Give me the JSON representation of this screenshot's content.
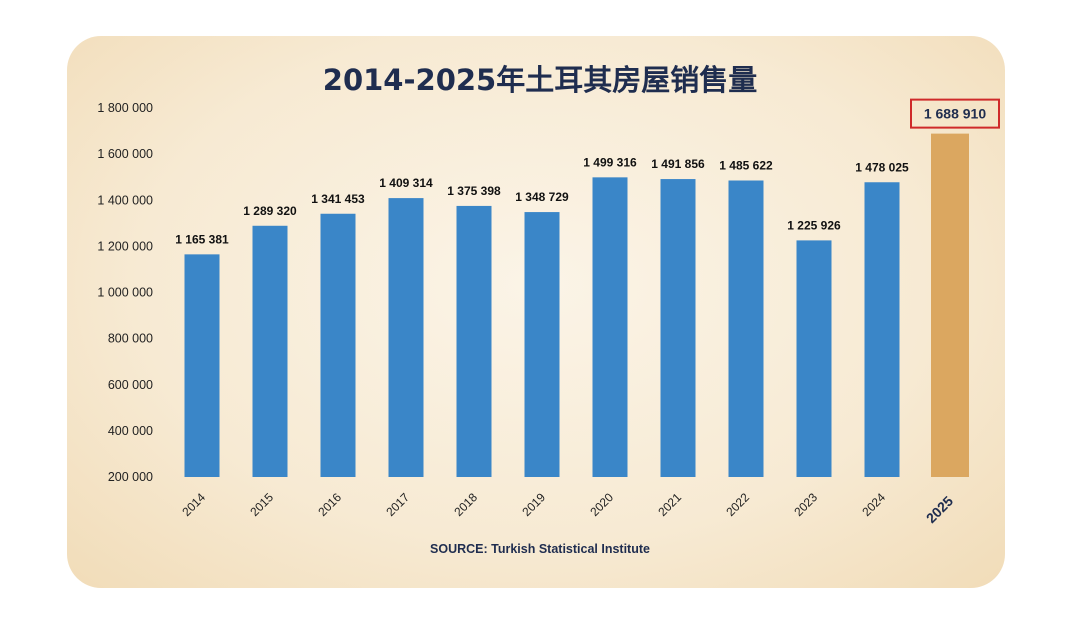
{
  "chart_data": {
    "type": "bar",
    "title": "2014-2025年土耳其房屋销售量",
    "source": "SOURCE: Turkish Statistical Institute",
    "categories": [
      "2014",
      "2015",
      "2016",
      "2017",
      "2018",
      "2019",
      "2020",
      "2021",
      "2022",
      "2023",
      "2024",
      "2025"
    ],
    "values": [
      1165381,
      1289320,
      1341453,
      1409314,
      1375398,
      1348729,
      1499316,
      1491856,
      1485622,
      1225926,
      1478025,
      1688910
    ],
    "value_labels": [
      "1 165 381",
      "1 289 320",
      "1 341 453",
      "1 409 314",
      "1 375 398",
      "1 348 729",
      "1 499 316",
      "1 491 856",
      "1 485 622",
      "1 225 926",
      "1 478 025",
      "1 688 910"
    ],
    "ylim": [
      200000,
      1800000
    ],
    "yticks": [
      200000,
      400000,
      600000,
      800000,
      1000000,
      1200000,
      1400000,
      1600000,
      1800000
    ],
    "ytick_labels": [
      "200 000",
      "400 000",
      "600 000",
      "800 000",
      "1 000 000",
      "1 200 000",
      "1 400 000",
      "1 600 000",
      "1 800 000"
    ],
    "highlight_index": 11,
    "grid": false,
    "colors": {
      "bar": "#3a86c8",
      "highlight_bar": "#dba760",
      "highlight_box": "#cf2a2a",
      "title": "#1f2d4f"
    }
  }
}
